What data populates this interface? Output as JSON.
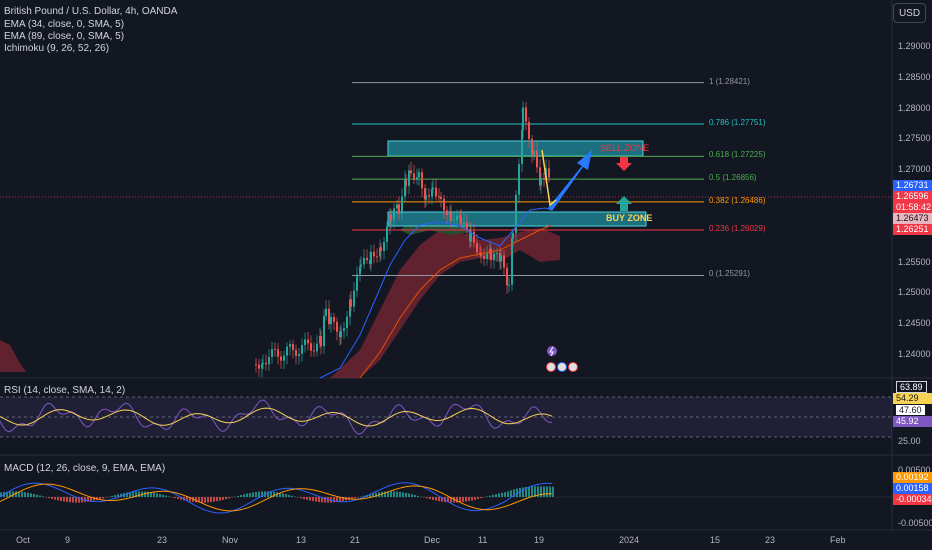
{
  "legend": {
    "symbol": "British Pound / U.S. Dollar, 4h, OANDA",
    "ema1": "EMA (34, close, 0, SMA, 5)",
    "ema2": "EMA (89, close, 0, SMA, 5)",
    "ichimoku": "Ichimoku (9, 26, 52, 26)",
    "rsi": "RSI (14, close, SMA, 14, 2)",
    "macd": "MACD (12, 26, close, 9, EMA, EMA)"
  },
  "currency_button": "USD",
  "price_axis": [
    "1.29000",
    "1.28500",
    "1.28000",
    "1.27500",
    "1.27000",
    "1.26500",
    "1.26000",
    "1.25500",
    "1.25000",
    "1.24500",
    "1.24000"
  ],
  "fib_levels": [
    {
      "label": "1 (1.28421)",
      "price": 1.28421,
      "color": "#9598a1"
    },
    {
      "label": "0.786 (1.27751)",
      "price": 1.27751,
      "color": "#22c1c3"
    },
    {
      "label": "0.618 (1.27225)",
      "price": 1.27225,
      "color": "#4caf50"
    },
    {
      "label": "0.5 (1.26856)",
      "price": 1.26856,
      "color": "#4caf50"
    },
    {
      "label": "0.382 (1.26486)",
      "price": 1.26486,
      "color": "#ff9800"
    },
    {
      "label": "0.236 (1.26029)",
      "price": 1.26029,
      "color": "#f23645"
    },
    {
      "label": "0 (1.25291)",
      "price": 1.25291,
      "color": "#9598a1"
    }
  ],
  "zones": {
    "sell": "SELL ZONE",
    "buy": "BUY ZONE"
  },
  "price_badges": [
    {
      "text": "1.26731",
      "bg": "#2962ff"
    },
    {
      "text": "1.26596",
      "bg": "#f23645"
    },
    {
      "text": "01:58:42",
      "bg": "#f23645"
    },
    {
      "text": "1.26473",
      "bg": "#e9b4bd"
    },
    {
      "text": "1.26251",
      "bg": "#f23645"
    }
  ],
  "rsi_axis": {
    "top": "63.89",
    "mid": "47.60",
    "bottom": "25.00"
  },
  "rsi_badges": [
    {
      "text": "54.29",
      "bg": "#f7d354"
    },
    {
      "text": "45.92",
      "bg": "#7e57c2"
    }
  ],
  "macd_axis": {
    "top": "0.00500",
    "bottom": "-0.00500"
  },
  "macd_badges": [
    {
      "text": "0.00192",
      "bg": "#ff9800"
    },
    {
      "text": "0.00158",
      "bg": "#2962ff"
    },
    {
      "text": "-0.00034",
      "bg": "#f23645"
    }
  ],
  "time_axis": [
    "Oct",
    "9",
    "23",
    "Nov",
    "13",
    "21",
    "Dec",
    "11",
    "19",
    "2024",
    "15",
    "23",
    "Feb"
  ]
}
